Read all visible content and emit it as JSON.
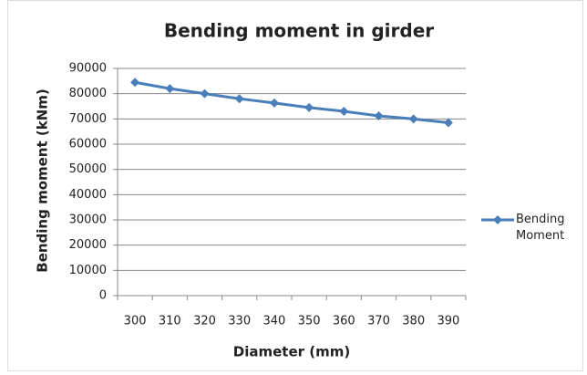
{
  "chart_data": {
    "type": "line",
    "title": "Bending moment in girder",
    "x_label": "Diameter  (mm)",
    "y_label": "Bending moment (kNm)",
    "categories": [
      "300",
      "310",
      "320",
      "330",
      "340",
      "350",
      "360",
      "370",
      "380",
      "390"
    ],
    "series": [
      {
        "name": "Bending Moment",
        "color": "#4a7ebb",
        "values": [
          84500,
          82000,
          80000,
          78000,
          76300,
          74500,
          73000,
          71200,
          70000,
          68500
        ]
      }
    ],
    "ylim": [
      0,
      90000
    ],
    "yticks": [
      0,
      10000,
      20000,
      30000,
      40000,
      50000,
      60000,
      70000,
      80000,
      90000
    ],
    "grid": true,
    "legend": "right"
  }
}
